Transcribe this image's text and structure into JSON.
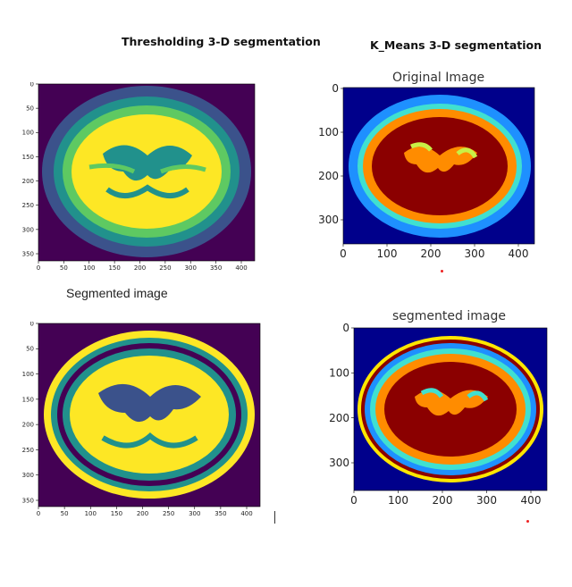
{
  "headings": {
    "thresholding": "Thresholding 3-D segmentation",
    "kmeans": "K_Means 3-D segmentation"
  },
  "captions": {
    "segmented_left": "Segmented image"
  },
  "panels": {
    "thr_original": {
      "title": "",
      "xticks": [
        "0",
        "50",
        "100",
        "150",
        "200",
        "250",
        "300",
        "350",
        "400"
      ],
      "yticks": [
        "0",
        "50",
        "100",
        "150",
        "200",
        "250",
        "300",
        "350"
      ],
      "colormap": "viridis",
      "colors": {
        "background": "#440154",
        "outer": "#3b528b",
        "mid": "#21918c",
        "light": "#5ec962",
        "bright": "#fde725"
      }
    },
    "km_original": {
      "title": "Original Image",
      "xticks": [
        "0",
        "100",
        "200",
        "300",
        "400"
      ],
      "yticks": [
        "0",
        "100",
        "200",
        "300"
      ],
      "colormap": "jet",
      "colors": {
        "background": "#00008b",
        "outer": "#1e90ff",
        "cyan": "#40e0d0",
        "orange": "#ff8c00",
        "dark": "#8b0000"
      }
    },
    "thr_segmented": {
      "title": "",
      "xticks": [
        "0",
        "50",
        "100",
        "150",
        "200",
        "250",
        "300",
        "350",
        "400"
      ],
      "yticks": [
        "0",
        "50",
        "100",
        "150",
        "200",
        "250",
        "300",
        "350"
      ],
      "colormap": "viridis",
      "colors": {
        "background": "#440154",
        "outer": "#3b528b",
        "mid": "#21918c",
        "light": "#5ec962",
        "bright": "#fde725"
      }
    },
    "km_segmented": {
      "title": "segmented image",
      "xticks": [
        "0",
        "100",
        "200",
        "300",
        "400"
      ],
      "yticks": [
        "0",
        "100",
        "200",
        "300"
      ],
      "colormap": "jet",
      "colors": {
        "background": "#00008b",
        "outer": "#1e90ff",
        "cyan": "#40e0d0",
        "orange": "#ff8c00",
        "dark": "#8b0000"
      }
    }
  }
}
